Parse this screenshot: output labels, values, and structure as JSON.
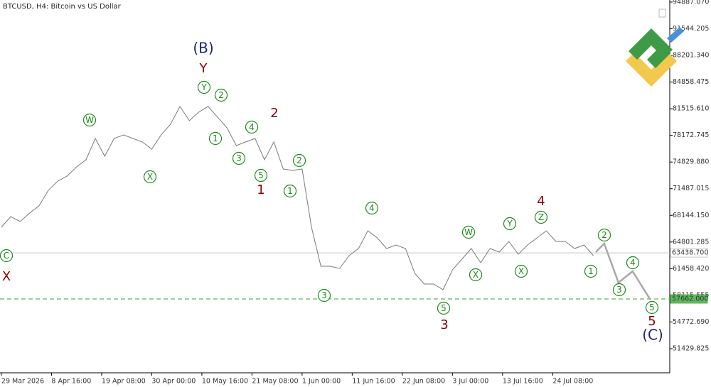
{
  "chart_data": {
    "type": "line",
    "title": "BTCUSD, H4:  Bitcoin vs US Dollar",
    "xlim": [
      -7,
      3414
    ],
    "ylim": [
      48400,
      95150
    ],
    "xticks": [
      {
        "value": 0,
        "label": "29 Mar 2026"
      },
      {
        "value": 256,
        "label": "8 Apr 16:00"
      },
      {
        "value": 512,
        "label": "19 Apr 08:00"
      },
      {
        "value": 768,
        "label": "30 Apr 00:00"
      },
      {
        "value": 1024,
        "label": "10 May 16:00"
      },
      {
        "value": 1280,
        "label": "21 May 08:00"
      },
      {
        "value": 1536,
        "label": "1 Jun 00:00"
      },
      {
        "value": 1792,
        "label": "11 Jun 16:00"
      },
      {
        "value": 2048,
        "label": "22 Jun 08:00"
      },
      {
        "value": 2304,
        "label": "3 Jul 00:00"
      },
      {
        "value": 2560,
        "label": "13 Jul 16:00"
      },
      {
        "value": 2816,
        "label": "24 Jul 08:00"
      }
    ],
    "yticks": [
      {
        "value": 94887.07,
        "label": "94887.070"
      },
      {
        "value": 91544.205,
        "label": "91544.205"
      },
      {
        "value": 88201.34,
        "label": "88201.340"
      },
      {
        "value": 84858.475,
        "label": "84858.475"
      },
      {
        "value": 81515.61,
        "label": "81515.610"
      },
      {
        "value": 78172.745,
        "label": "78172.745"
      },
      {
        "value": 74829.88,
        "label": "74829.880"
      },
      {
        "value": 71487.015,
        "label": "71487.015"
      },
      {
        "value": 68144.15,
        "label": "68144.150"
      },
      {
        "value": 64801.285,
        "label": "64801.285"
      },
      {
        "value": 61458.42,
        "label": "61458.420"
      },
      {
        "value": 58115.555,
        "label": "58115.555"
      },
      {
        "value": 54772.69,
        "label": "54772.690"
      },
      {
        "value": 51429.825,
        "label": "51429.825"
      }
    ],
    "series": [
      {
        "color": "#7a7a7a",
        "width": 1,
        "x": [
          0,
          48,
          96,
          144,
          192,
          240,
          288,
          336,
          384,
          432,
          480,
          528,
          576,
          624,
          672,
          720,
          768,
          816,
          864,
          912,
          960,
          1008,
          1056,
          1104,
          1152,
          1200,
          1248,
          1296,
          1344,
          1392,
          1440,
          1488,
          1536,
          1584,
          1632,
          1680,
          1728,
          1776,
          1824,
          1872,
          1920,
          1968,
          2016,
          2064,
          2112,
          2160,
          2208,
          2256,
          2304,
          2352,
          2400,
          2448,
          2496,
          2544,
          2592,
          2640,
          2688,
          2736,
          2784,
          2832,
          2880,
          2928,
          2976,
          3024
        ],
        "values": [
          66658,
          67994,
          67371,
          68439,
          69330,
          71289,
          72447,
          73070,
          74228,
          75118,
          77790,
          75563,
          77790,
          78235,
          77790,
          77345,
          76454,
          78235,
          79571,
          81798,
          80017,
          81085,
          81798,
          80462,
          79126,
          76899,
          77345,
          77790,
          75118,
          77345,
          73961,
          73783,
          73961,
          66658,
          61760,
          61760,
          61493,
          63096,
          63986,
          66213,
          65322,
          63986,
          64432,
          63986,
          60869,
          59533,
          59533,
          58821,
          61314,
          62650,
          63986,
          62205,
          63986,
          63541,
          64877,
          63274,
          64432,
          65322,
          66213,
          64877,
          64877,
          63986,
          64432,
          63096
        ]
      },
      {
        "color": "#a8a8a8",
        "width": 2.5,
        "x": [
          3036,
          3079,
          3152,
          3224,
          3315
        ],
        "values": [
          63541,
          64610,
          59711,
          61136,
          57576
        ]
      }
    ],
    "hlines": [
      {
        "value": 63438.7,
        "label": "63438.700",
        "color": "#c8c8c8",
        "dashed": false
      },
      {
        "value": 57662,
        "label": "57662.000",
        "color": "#5cb85c",
        "dashed": true
      }
    ],
    "annotations": [
      {
        "text": "(B)",
        "color": "#1a237e",
        "circled": false
      },
      {
        "text": "Y",
        "color": "#8b0000",
        "circled": false
      },
      {
        "text": "Y",
        "color": "#1a8a1a",
        "circled": true
      },
      {
        "text": "2",
        "color": "#1a8a1a",
        "circled": true
      },
      {
        "text": "W",
        "color": "#1a8a1a",
        "circled": true
      },
      {
        "text": "1",
        "color": "#1a8a1a",
        "circled": true
      },
      {
        "text": "4",
        "color": "#1a8a1a",
        "circled": true
      },
      {
        "text": "2",
        "color": "#8b0000",
        "circled": false
      },
      {
        "text": "3",
        "color": "#1a8a1a",
        "circled": true
      },
      {
        "text": "X",
        "color": "#1a8a1a",
        "circled": true
      },
      {
        "text": "5",
        "color": "#1a8a1a",
        "circled": true
      },
      {
        "text": "1",
        "color": "#8b0000",
        "circled": false
      },
      {
        "text": "2",
        "color": "#1a8a1a",
        "circled": true
      },
      {
        "text": "1",
        "color": "#1a8a1a",
        "circled": true
      },
      {
        "text": "4",
        "color": "#1a8a1a",
        "circled": true
      },
      {
        "text": "3",
        "color": "#1a8a1a",
        "circled": true
      },
      {
        "text": "5",
        "color": "#1a8a1a",
        "circled": true
      },
      {
        "text": "3",
        "color": "#8b0000",
        "circled": false
      },
      {
        "text": "C",
        "color": "#1a8a1a",
        "circled": true
      },
      {
        "text": "X",
        "color": "#8b0000",
        "circled": false
      },
      {
        "text": "W",
        "color": "#1a8a1a",
        "circled": true
      },
      {
        "text": "Y",
        "color": "#1a8a1a",
        "circled": true
      },
      {
        "text": "4",
        "color": "#8b0000",
        "circled": false
      },
      {
        "text": "Z",
        "color": "#1a8a1a",
        "circled": true
      },
      {
        "text": "2",
        "color": "#1a8a1a",
        "circled": true
      },
      {
        "text": "X",
        "color": "#1a8a1a",
        "circled": true
      },
      {
        "text": "X",
        "color": "#1a8a1a",
        "circled": true
      },
      {
        "text": "1",
        "color": "#1a8a1a",
        "circled": true
      },
      {
        "text": "4",
        "color": "#1a8a1a",
        "circled": true
      },
      {
        "text": "3",
        "color": "#1a8a1a",
        "circled": true
      },
      {
        "text": "5",
        "color": "#1a8a1a",
        "circled": true
      },
      {
        "text": "5",
        "color": "#8b0000",
        "circled": false
      },
      {
        "text": "(C)",
        "color": "#1a237e",
        "circled": false
      }
    ]
  }
}
